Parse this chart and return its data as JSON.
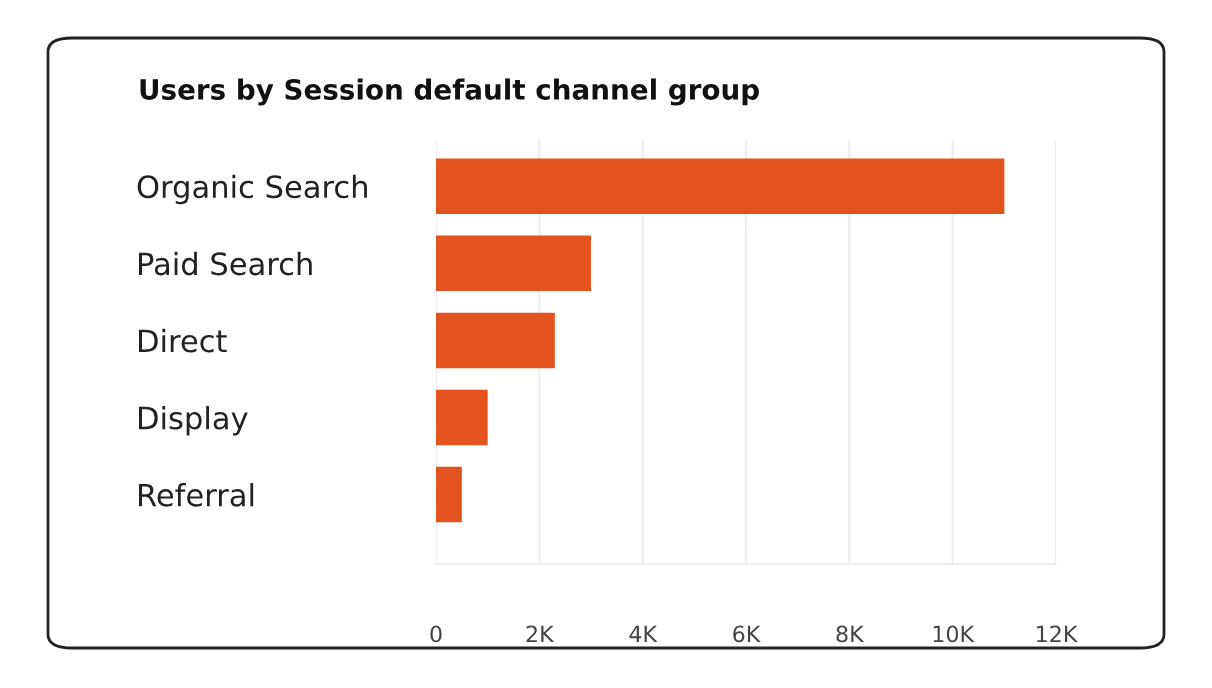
{
  "chart_data": {
    "type": "bar",
    "orientation": "horizontal",
    "title": "Users by Session default channel group",
    "categories": [
      "Organic Search",
      "Paid Search",
      "Direct",
      "Display",
      "Referral"
    ],
    "series": [
      {
        "color": "#e2531f",
        "values": [
          11000,
          3000,
          2300,
          1000,
          500
        ]
      }
    ],
    "xlim": [
      0,
      12000
    ],
    "xticks": [
      {
        "value": 0,
        "label": "0"
      },
      {
        "value": 2000,
        "label": "2K"
      },
      {
        "value": 4000,
        "label": "4K"
      },
      {
        "value": 6000,
        "label": "6K"
      },
      {
        "value": 8000,
        "label": "8K"
      },
      {
        "value": 10000,
        "label": "10K"
      },
      {
        "value": 12000,
        "label": "12K"
      }
    ],
    "grid": "x"
  }
}
